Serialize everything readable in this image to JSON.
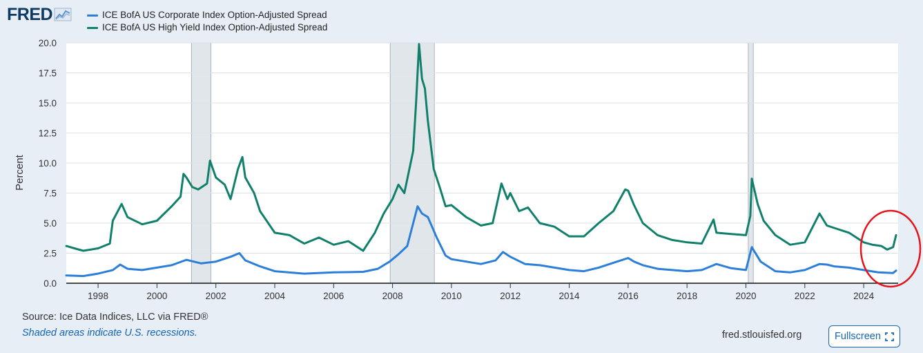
{
  "brand": {
    "logo_text": "FRED",
    "logo_icon": "line-chart-icon"
  },
  "colors": {
    "corporate": "#2b7fd9",
    "high_yield": "#11806b",
    "recession": "#e1e6ea",
    "annotation": "#e4121b",
    "link": "#1465b6"
  },
  "footer": {
    "source": "Source: Ice Data Indices, LLC via FRED®",
    "recession_note": "Shaded areas indicate U.S. recessions.",
    "site": "fred.stlouisfed.org",
    "fullscreen_label": "Fullscreen",
    "fullscreen_icon": "expand-icon"
  },
  "chart_data": {
    "type": "line",
    "title": "",
    "xlabel": "",
    "ylabel": "Percent",
    "xlim": [
      1996.92,
      2025.17
    ],
    "ylim": [
      0,
      20
    ],
    "yticks": [
      "20.0",
      "17.5",
      "15.0",
      "12.5",
      "10.0",
      "7.5",
      "5.0",
      "2.5",
      "0.0"
    ],
    "xticks": [
      "1998",
      "2000",
      "2002",
      "2004",
      "2006",
      "2008",
      "2010",
      "2012",
      "2014",
      "2016",
      "2018",
      "2020",
      "2022",
      "2024"
    ],
    "grid": true,
    "legend_position": "top-left",
    "recessions": [
      [
        2001.17,
        2001.83
      ],
      [
        2007.92,
        2009.42
      ],
      [
        2020.08,
        2020.25
      ]
    ],
    "annotation": {
      "type": "circle",
      "target": "2024-2025 spread values"
    },
    "series": [
      {
        "name": "ICE BofA US Corporate Index Option-Adjusted Spread",
        "color": "#2b7fd9",
        "x": [
          1996.92,
          1997.5,
          1998.0,
          1998.5,
          1998.75,
          1999.0,
          1999.5,
          2000.0,
          2000.5,
          2001.0,
          2001.5,
          2002.0,
          2002.5,
          2002.8,
          2003.0,
          2003.5,
          2004.0,
          2005.0,
          2006.0,
          2007.0,
          2007.5,
          2007.9,
          2008.2,
          2008.5,
          2008.85,
          2009.0,
          2009.2,
          2009.5,
          2009.8,
          2010.0,
          2010.5,
          2011.0,
          2011.5,
          2011.75,
          2012.0,
          2012.5,
          2013.0,
          2014.0,
          2014.5,
          2015.0,
          2015.5,
          2016.0,
          2016.2,
          2016.5,
          2017.0,
          2018.0,
          2018.5,
          2019.0,
          2019.5,
          2020.0,
          2020.2,
          2020.5,
          2021.0,
          2021.5,
          2022.0,
          2022.5,
          2022.75,
          2023.0,
          2023.5,
          2024.0,
          2024.5,
          2025.0,
          2025.1
        ],
        "y": [
          0.65,
          0.6,
          0.8,
          1.1,
          1.55,
          1.2,
          1.1,
          1.3,
          1.5,
          1.95,
          1.65,
          1.8,
          2.2,
          2.5,
          1.9,
          1.4,
          1.0,
          0.8,
          0.9,
          0.95,
          1.2,
          1.8,
          2.4,
          3.1,
          6.4,
          5.8,
          5.5,
          3.8,
          2.3,
          2.0,
          1.8,
          1.6,
          1.9,
          2.6,
          2.2,
          1.6,
          1.5,
          1.1,
          1.0,
          1.3,
          1.7,
          2.1,
          1.8,
          1.5,
          1.2,
          1.0,
          1.1,
          1.6,
          1.25,
          1.1,
          3.0,
          1.8,
          1.0,
          0.9,
          1.1,
          1.6,
          1.55,
          1.4,
          1.3,
          1.1,
          0.9,
          0.85,
          1.05
        ]
      },
      {
        "name": "ICE BofA US High Yield Index Option-Adjusted Spread",
        "color": "#11806b",
        "x": [
          1996.92,
          1997.2,
          1997.5,
          1998.0,
          1998.4,
          1998.5,
          1998.8,
          1999.0,
          1999.5,
          2000.0,
          2000.5,
          2000.8,
          2000.9,
          2001.0,
          2001.2,
          2001.4,
          2001.7,
          2001.8,
          2002.0,
          2002.3,
          2002.5,
          2002.75,
          2002.9,
          2003.0,
          2003.3,
          2003.5,
          2004.0,
          2004.5,
          2005.0,
          2005.5,
          2006.0,
          2006.5,
          2007.0,
          2007.4,
          2007.7,
          2008.0,
          2008.2,
          2008.4,
          2008.7,
          2008.8,
          2008.9,
          2009.0,
          2009.1,
          2009.2,
          2009.4,
          2009.6,
          2009.8,
          2010.0,
          2010.5,
          2011.0,
          2011.4,
          2011.7,
          2011.9,
          2012.0,
          2012.3,
          2012.6,
          2013.0,
          2013.5,
          2014.0,
          2014.5,
          2015.0,
          2015.5,
          2015.9,
          2016.0,
          2016.2,
          2016.5,
          2017.0,
          2017.5,
          2018.0,
          2018.5,
          2018.9,
          2019.0,
          2019.5,
          2020.0,
          2020.15,
          2020.2,
          2020.4,
          2020.6,
          2021.0,
          2021.5,
          2022.0,
          2022.5,
          2022.75,
          2023.0,
          2023.5,
          2024.0,
          2024.3,
          2024.6,
          2024.8,
          2025.0,
          2025.1
        ],
        "y": [
          3.1,
          2.9,
          2.7,
          2.9,
          3.3,
          5.2,
          6.6,
          5.5,
          4.9,
          5.2,
          6.4,
          7.2,
          9.1,
          8.8,
          8.0,
          7.8,
          8.3,
          10.2,
          8.8,
          8.2,
          7.0,
          9.5,
          10.5,
          8.8,
          7.5,
          6.0,
          4.2,
          4.0,
          3.3,
          3.8,
          3.2,
          3.5,
          2.7,
          4.2,
          5.8,
          7.0,
          8.2,
          7.5,
          11.0,
          15.0,
          19.9,
          17.0,
          16.2,
          13.5,
          9.5,
          8.0,
          6.4,
          6.5,
          5.5,
          4.8,
          5.0,
          8.3,
          7.0,
          7.5,
          6.0,
          6.3,
          5.0,
          4.7,
          3.9,
          3.9,
          5.0,
          6.0,
          7.8,
          7.7,
          6.5,
          5.0,
          4.0,
          3.6,
          3.4,
          3.3,
          5.3,
          4.2,
          4.1,
          4.0,
          5.6,
          8.7,
          6.6,
          5.2,
          4.0,
          3.2,
          3.4,
          5.8,
          4.8,
          4.6,
          4.2,
          3.4,
          3.2,
          3.1,
          2.8,
          3.0,
          4.0
        ]
      }
    ]
  }
}
